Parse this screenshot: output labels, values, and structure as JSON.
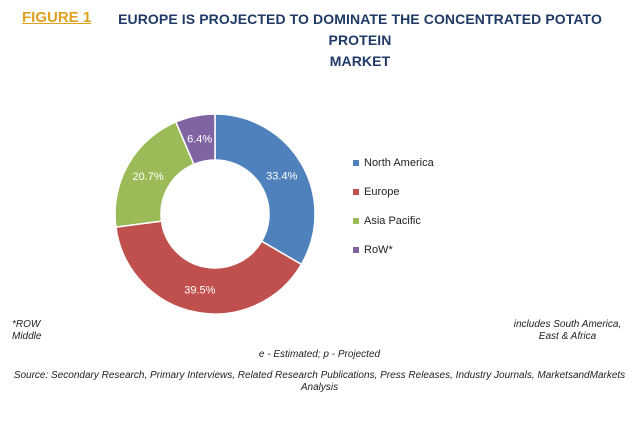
{
  "figure": {
    "label": "FIGURE 1",
    "title_line1": "EUROPE IS PROJECTED TO DOMINATE THE CONCENTRATED POTATO PROTEIN",
    "title_line2": "MARKET"
  },
  "chart_data": {
    "type": "pie",
    "donut": true,
    "categories": [
      "North America",
      "Europe",
      "Asia Pacific",
      "RoW*"
    ],
    "values": [
      33.4,
      39.5,
      20.7,
      6.4
    ],
    "data_labels": [
      "33.4%",
      "39.5%",
      "20.7%",
      "6.4%"
    ],
    "colors": [
      "#4f81bd",
      "#c0504d",
      "#9bbb59",
      "#8064a2"
    ],
    "legend_position": "right"
  },
  "notes": {
    "row_line1": "*ROW",
    "row_line2": "Middle",
    "row_right_line1": "includes South America,",
    "row_right_line2": "East & Africa",
    "legend_note": "e - Estimated; p - Projected",
    "source_line1": "Source: Secondary Research, Primary Interviews, Related Research Publications, Press Releases, Industry Journals, MarketsandMarkets",
    "source_line2": "Analysis"
  }
}
